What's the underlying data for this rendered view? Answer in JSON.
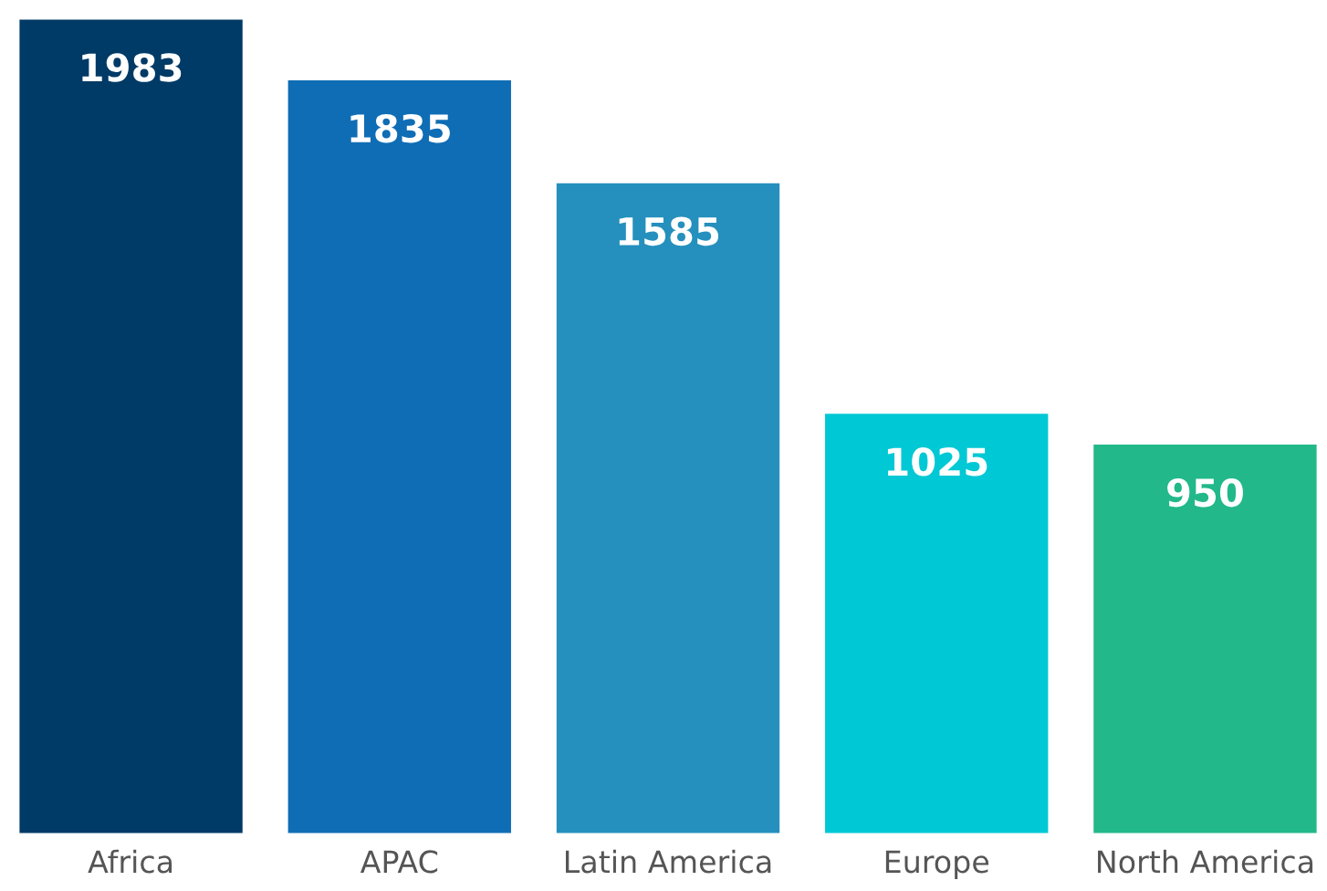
{
  "chart_data": {
    "type": "bar",
    "categories": [
      "Africa",
      "APAC",
      "Latin America",
      "Europe",
      "North America"
    ],
    "values": [
      1983,
      1835,
      1585,
      1025,
      950
    ],
    "colors": [
      "#003a66",
      "#0f6db5",
      "#2590bd",
      "#00c8d4",
      "#22b88a"
    ],
    "data_labels": true,
    "grid": false,
    "legend": false
  }
}
